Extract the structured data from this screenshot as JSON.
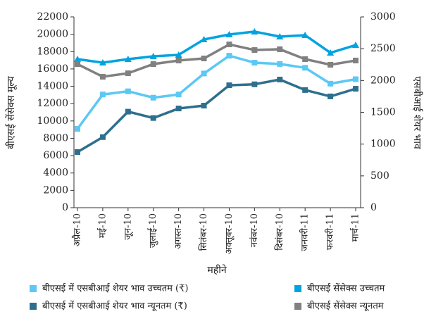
{
  "chart_data": {
    "type": "line",
    "x_label": "महीने",
    "y_label": "बीएसई सेंसेक्स मूल्य",
    "y2_label": "एसबीआई शेयर भाव",
    "categories": [
      "अप्रैल-10",
      "मई-10",
      "जून-10",
      "जुलाई-10",
      "अगस्त-10",
      "सितंबर-10",
      "अक्तूबर-10",
      "नवंबर-10",
      "दिसंबर-10",
      "जनवरी-11",
      "फरवरी-11",
      "मार्च-11"
    ],
    "ylim": [
      0,
      22000
    ],
    "yticks": [
      0,
      2000,
      4000,
      6000,
      8000,
      10000,
      12000,
      14000,
      16000,
      18000,
      20000,
      22000
    ],
    "y2lim": [
      0,
      3000
    ],
    "y2ticks": [
      0,
      500,
      1000,
      1500,
      2000,
      2500,
      3000
    ],
    "series": [
      {
        "name": "बीएसई में एसबीआई शेयर भाव उच्चतम (₹)",
        "color": "#5bc8f5",
        "marker": "square",
        "axis": "y2",
        "values": [
          1240,
          1780,
          1830,
          1730,
          1780,
          2110,
          2390,
          2280,
          2260,
          2200,
          1950,
          2020
        ]
      },
      {
        "name": "बीएसई सेंसेक्स उच्चतम",
        "color": "#00a3e0",
        "marker": "triangle",
        "values": [
          17130,
          16720,
          17130,
          17450,
          17620,
          19400,
          19970,
          20300,
          19730,
          19890,
          17860,
          18750
        ]
      },
      {
        "name": "बीएसई में एसबीआई शेयर भाव न्यूनतम (₹)",
        "color": "#2e6f8e",
        "marker": "square",
        "axis": "y2",
        "values": [
          875,
          1110,
          1510,
          1410,
          1560,
          1605,
          1925,
          1940,
          2015,
          1850,
          1750,
          1870
        ]
      },
      {
        "name": "बीएसई सेंसेक्स न्यूनतम",
        "color": "#808080",
        "marker": "square",
        "values": [
          16560,
          15100,
          15500,
          16560,
          16970,
          17210,
          18830,
          18180,
          18270,
          17130,
          16480,
          16970
        ]
      }
    ]
  }
}
